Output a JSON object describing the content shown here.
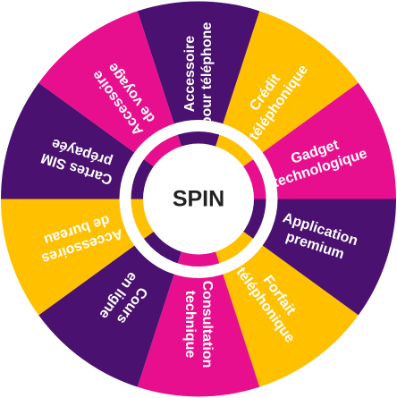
{
  "wheel": {
    "spin_label": "SPIN",
    "colors": {
      "purple": "#4a1170",
      "magenta": "#e80f8e",
      "yellow": "#ffc000",
      "ring": "#ffffff",
      "hub": "#ffffff",
      "hub_text": "#222222"
    },
    "segments": [
      {
        "color": "purple",
        "lines": [
          "Accessoire",
          "pour téléphone"
        ]
      },
      {
        "color": "yellow",
        "lines": [
          "Crédit",
          "téléphonique"
        ]
      },
      {
        "color": "magenta",
        "lines": [
          "Gadget",
          "technologique"
        ]
      },
      {
        "color": "purple",
        "lines": [
          "Application",
          "premium"
        ]
      },
      {
        "color": "yellow",
        "lines": [
          "Forfait",
          "téléphonique"
        ]
      },
      {
        "color": "magenta",
        "lines": [
          "Consultation",
          "technique"
        ]
      },
      {
        "color": "purple",
        "lines": [
          "Cours",
          "en ligne"
        ]
      },
      {
        "color": "yellow",
        "lines": [
          "Accessoires",
          "de bureau"
        ]
      },
      {
        "color": "purple",
        "lines": [
          "Cartes SIM",
          "prépayée"
        ]
      },
      {
        "color": "magenta",
        "lines": [
          "Accessoire",
          "de voyage"
        ]
      }
    ]
  }
}
